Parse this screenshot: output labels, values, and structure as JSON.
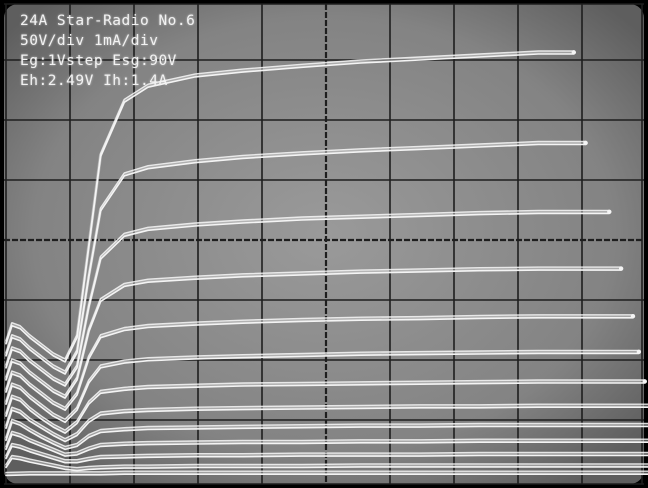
{
  "readout": {
    "line1": "24A Star-Radio No.6",
    "line2": "50V/div 1mA/div",
    "line3": "Eg:1Vstep Esg:90V",
    "line4": "Eh:2.49V Ih:1.4A"
  },
  "colors": {
    "screen": "#8a8a8a",
    "bezel": "#000000",
    "grid": "#1e1e1e",
    "trace": "#f4f4f4"
  },
  "chart_data": {
    "type": "line",
    "title": "24A Star-Radio No.6",
    "xlabel": "",
    "ylabel": "",
    "x_units_per_div": "50V/div",
    "y_units_per_div": "1mA/div",
    "xlim": [
      0,
      500
    ],
    "ylim": [
      0,
      8
    ],
    "grid": true,
    "series": [
      {
        "x": [
          0,
          5,
          12,
          20,
          30,
          40,
          50,
          60,
          70,
          80,
          100,
          120,
          160,
          200,
          250,
          300,
          350,
          400,
          450,
          480
        ],
        "y": [
          2.2,
          2.5,
          2.45,
          2.3,
          2.15,
          2.0,
          1.9,
          2.3,
          3.8,
          5.3,
          6.2,
          6.45,
          6.62,
          6.7,
          6.78,
          6.85,
          6.9,
          6.95,
          7.0,
          7.0
        ]
      },
      {
        "x": [
          0,
          5,
          12,
          20,
          30,
          40,
          50,
          60,
          70,
          80,
          100,
          120,
          160,
          200,
          250,
          300,
          350,
          400,
          450,
          490
        ],
        "y": [
          2.0,
          2.3,
          2.25,
          2.1,
          1.95,
          1.8,
          1.7,
          2.05,
          3.3,
          4.4,
          4.98,
          5.1,
          5.2,
          5.27,
          5.33,
          5.38,
          5.42,
          5.46,
          5.5,
          5.5
        ]
      },
      {
        "x": [
          0,
          5,
          12,
          20,
          30,
          40,
          50,
          60,
          70,
          80,
          100,
          120,
          160,
          200,
          250,
          300,
          350,
          400,
          450,
          510
        ],
        "y": [
          1.8,
          2.1,
          2.05,
          1.9,
          1.75,
          1.6,
          1.5,
          1.8,
          2.8,
          3.6,
          3.98,
          4.08,
          4.15,
          4.2,
          4.25,
          4.28,
          4.31,
          4.34,
          4.36,
          4.36
        ]
      },
      {
        "x": [
          0,
          5,
          12,
          20,
          30,
          40,
          50,
          60,
          70,
          80,
          100,
          120,
          160,
          200,
          250,
          300,
          350,
          400,
          450,
          520
        ],
        "y": [
          1.6,
          1.9,
          1.85,
          1.7,
          1.55,
          1.4,
          1.3,
          1.6,
          2.4,
          2.9,
          3.15,
          3.22,
          3.27,
          3.31,
          3.34,
          3.37,
          3.39,
          3.41,
          3.42,
          3.42
        ]
      },
      {
        "x": [
          0,
          5,
          12,
          20,
          30,
          40,
          50,
          60,
          70,
          80,
          100,
          120,
          160,
          200,
          250,
          300,
          350,
          400,
          450,
          530
        ],
        "y": [
          1.4,
          1.7,
          1.65,
          1.5,
          1.35,
          1.2,
          1.1,
          1.35,
          1.95,
          2.3,
          2.42,
          2.47,
          2.51,
          2.54,
          2.57,
          2.59,
          2.6,
          2.62,
          2.63,
          2.63
        ]
      },
      {
        "x": [
          0,
          5,
          12,
          20,
          30,
          40,
          50,
          60,
          70,
          80,
          100,
          120,
          160,
          200,
          250,
          300,
          350,
          400,
          450,
          535
        ],
        "y": [
          1.2,
          1.5,
          1.45,
          1.3,
          1.15,
          1.0,
          0.9,
          1.1,
          1.55,
          1.8,
          1.88,
          1.92,
          1.95,
          1.97,
          1.99,
          2.01,
          2.02,
          2.03,
          2.04,
          2.04
        ]
      },
      {
        "x": [
          0,
          5,
          12,
          20,
          30,
          40,
          50,
          60,
          70,
          80,
          100,
          120,
          160,
          200,
          250,
          300,
          350,
          400,
          450,
          540
        ],
        "y": [
          1.0,
          1.3,
          1.25,
          1.1,
          0.95,
          0.82,
          0.72,
          0.88,
          1.2,
          1.38,
          1.43,
          1.46,
          1.48,
          1.5,
          1.51,
          1.52,
          1.53,
          1.54,
          1.55,
          1.55
        ]
      },
      {
        "x": [
          0,
          5,
          12,
          20,
          30,
          40,
          50,
          60,
          70,
          80,
          100,
          120,
          160,
          200,
          250,
          300,
          350,
          400,
          450,
          545
        ],
        "y": [
          0.8,
          1.1,
          1.05,
          0.92,
          0.8,
          0.68,
          0.58,
          0.68,
          0.9,
          1.02,
          1.06,
          1.08,
          1.1,
          1.11,
          1.12,
          1.13,
          1.14,
          1.14,
          1.15,
          1.15
        ]
      },
      {
        "x": [
          0,
          5,
          12,
          20,
          30,
          40,
          50,
          60,
          70,
          80,
          100,
          120,
          160,
          200,
          250,
          300,
          350,
          400,
          450,
          545
        ],
        "y": [
          0.6,
          0.9,
          0.85,
          0.75,
          0.64,
          0.54,
          0.45,
          0.5,
          0.65,
          0.73,
          0.76,
          0.78,
          0.79,
          0.8,
          0.81,
          0.82,
          0.82,
          0.83,
          0.83,
          0.83
        ]
      },
      {
        "x": [
          0,
          5,
          12,
          20,
          30,
          40,
          50,
          60,
          70,
          80,
          100,
          120,
          160,
          200,
          250,
          300,
          350,
          400,
          450,
          545
        ],
        "y": [
          0.45,
          0.7,
          0.66,
          0.58,
          0.5,
          0.42,
          0.34,
          0.36,
          0.44,
          0.5,
          0.52,
          0.53,
          0.54,
          0.55,
          0.55,
          0.56,
          0.56,
          0.57,
          0.57,
          0.57
        ]
      },
      {
        "x": [
          0,
          5,
          12,
          20,
          30,
          40,
          50,
          60,
          70,
          80,
          100,
          120,
          160,
          200,
          250,
          300,
          350,
          400,
          450,
          545
        ],
        "y": [
          0.3,
          0.5,
          0.47,
          0.41,
          0.35,
          0.29,
          0.23,
          0.23,
          0.27,
          0.3,
          0.31,
          0.32,
          0.33,
          0.33,
          0.34,
          0.34,
          0.34,
          0.35,
          0.35,
          0.35
        ]
      },
      {
        "x": [
          0,
          5,
          12,
          20,
          30,
          40,
          50,
          60,
          70,
          80,
          100,
          120,
          160,
          200,
          250,
          300,
          350,
          400,
          450,
          545
        ],
        "y": [
          0.15,
          0.3,
          0.28,
          0.24,
          0.2,
          0.16,
          0.12,
          0.1,
          0.12,
          0.13,
          0.14,
          0.14,
          0.15,
          0.15,
          0.15,
          0.16,
          0.16,
          0.16,
          0.16,
          0.16
        ]
      },
      {
        "x": [
          0,
          20,
          40,
          60,
          80,
          100,
          200,
          300,
          400,
          545
        ],
        "y": [
          0.02,
          0.03,
          0.03,
          0.03,
          0.03,
          0.04,
          0.04,
          0.04,
          0.04,
          0.04
        ]
      }
    ]
  }
}
